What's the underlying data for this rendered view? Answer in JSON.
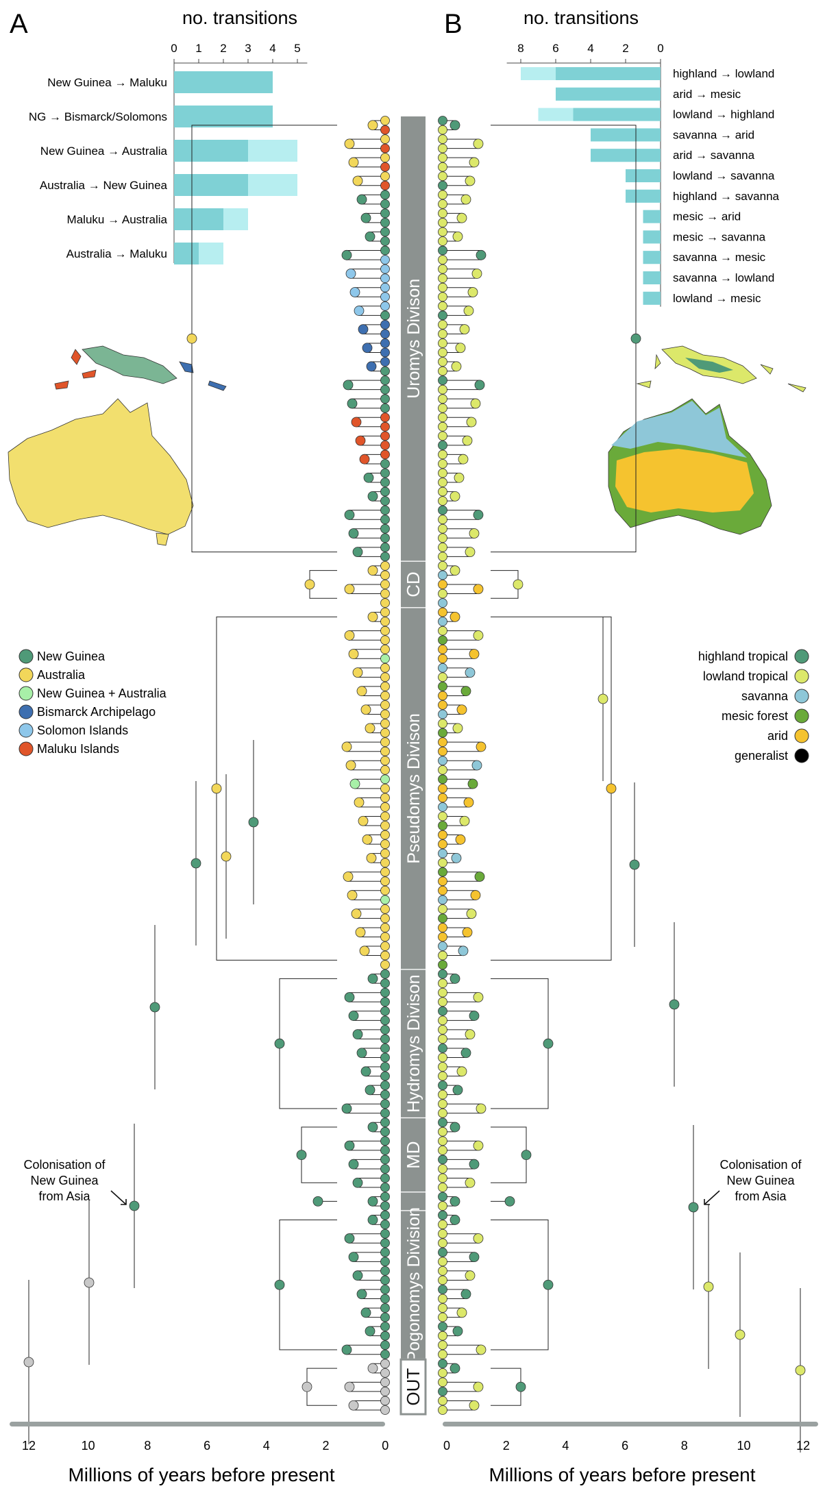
{
  "panel_a": {
    "letter": "A",
    "chart_title": "no. transitions",
    "chart_ticks": [
      "0",
      "1",
      "2",
      "3",
      "4",
      "5"
    ],
    "bars": [
      {
        "label": "New Guinea → Maluku",
        "value": 4,
        "light": 4
      },
      {
        "label": "NG → Bismarck/Solomons",
        "value": 4,
        "light": 4
      },
      {
        "label": "New Guinea → Australia",
        "value": 3,
        "light": 5
      },
      {
        "label": "Australia → New Guinea",
        "value": 3,
        "light": 5
      },
      {
        "label": "Maluku → Australia",
        "value": 2,
        "light": 3
      },
      {
        "label": "Australia → Maluku",
        "value": 1,
        "light": 2
      }
    ],
    "legend": [
      {
        "label": "New Guinea",
        "color": "#4f9a78"
      },
      {
        "label": "Australia",
        "color": "#f2d75a"
      },
      {
        "label": "New Guinea + Australia",
        "color": "#a8f0a8"
      },
      {
        "label": "Bismarck Archipelago",
        "color": "#3e6fb0"
      },
      {
        "label": "Solomon Islands",
        "color": "#8ec7ea"
      },
      {
        "label": "Maluku Islands",
        "color": "#e0552a"
      }
    ],
    "annotation": [
      "Colonisation of",
      "New Guinea",
      "from Asia"
    ],
    "axis_ticks": [
      "12",
      "10",
      "8",
      "6",
      "4",
      "2",
      "0"
    ],
    "axis_title": "Millions of years before present"
  },
  "panel_b": {
    "letter": "B",
    "chart_title": "no. transitions",
    "chart_ticks": [
      "8",
      "6",
      "4",
      "2",
      "0"
    ],
    "bars": [
      {
        "label": "highland → lowland",
        "value": 6,
        "light": 8
      },
      {
        "label": "arid → mesic",
        "value": 6,
        "light": 6
      },
      {
        "label": "lowland → highland",
        "value": 5,
        "light": 7
      },
      {
        "label": "savanna → arid",
        "value": 4,
        "light": 4
      },
      {
        "label": "arid → savanna",
        "value": 4,
        "light": 4
      },
      {
        "label": "lowland → savanna",
        "value": 2,
        "light": 2
      },
      {
        "label": "highland → savanna",
        "value": 2,
        "light": 2
      },
      {
        "label": "mesic → arid",
        "value": 1,
        "light": 1
      },
      {
        "label": "mesic → savanna",
        "value": 1,
        "light": 1
      },
      {
        "label": "savanna → mesic",
        "value": 1,
        "light": 1
      },
      {
        "label": "savanna → lowland",
        "value": 1,
        "light": 1
      },
      {
        "label": "lowland → mesic",
        "value": 1,
        "light": 1
      }
    ],
    "legend": [
      {
        "label": "highland tropical",
        "color": "#4f9a78"
      },
      {
        "label": "lowland tropical",
        "color": "#dce86a"
      },
      {
        "label": "savanna",
        "color": "#8ec7d8"
      },
      {
        "label": "mesic forest",
        "color": "#6aaa3a"
      },
      {
        "label": "arid",
        "color": "#f5c32f"
      },
      {
        "label": "generalist",
        "color": "#000000"
      }
    ],
    "annotation": [
      "Colonisation of",
      "New Guinea",
      "from Asia"
    ],
    "axis_ticks": [
      "0",
      "2",
      "4",
      "6",
      "8",
      "10",
      "12"
    ],
    "axis_title": "Millions of years before present"
  },
  "clades": [
    {
      "label": "Uromys Divison",
      "tips": 48
    },
    {
      "label": "CD",
      "tips": 5
    },
    {
      "label": "Pseudomys Divison",
      "tips": 39
    },
    {
      "label": "Hydromys Divison",
      "tips": 16
    },
    {
      "label": "MD",
      "tips": 8
    },
    {
      "label": "",
      "tips": 2
    },
    {
      "label": "Pogonomys Division",
      "tips": 16
    },
    {
      "label": "OUT",
      "tips": 6
    }
  ],
  "colors": {
    "bar_dark": "#7fd1d5",
    "bar_light": "#b7eef0",
    "clade_box": "#8c9290",
    "axis_bar": "#9aa1a0",
    "outgroup": "#c8c8c8"
  }
}
